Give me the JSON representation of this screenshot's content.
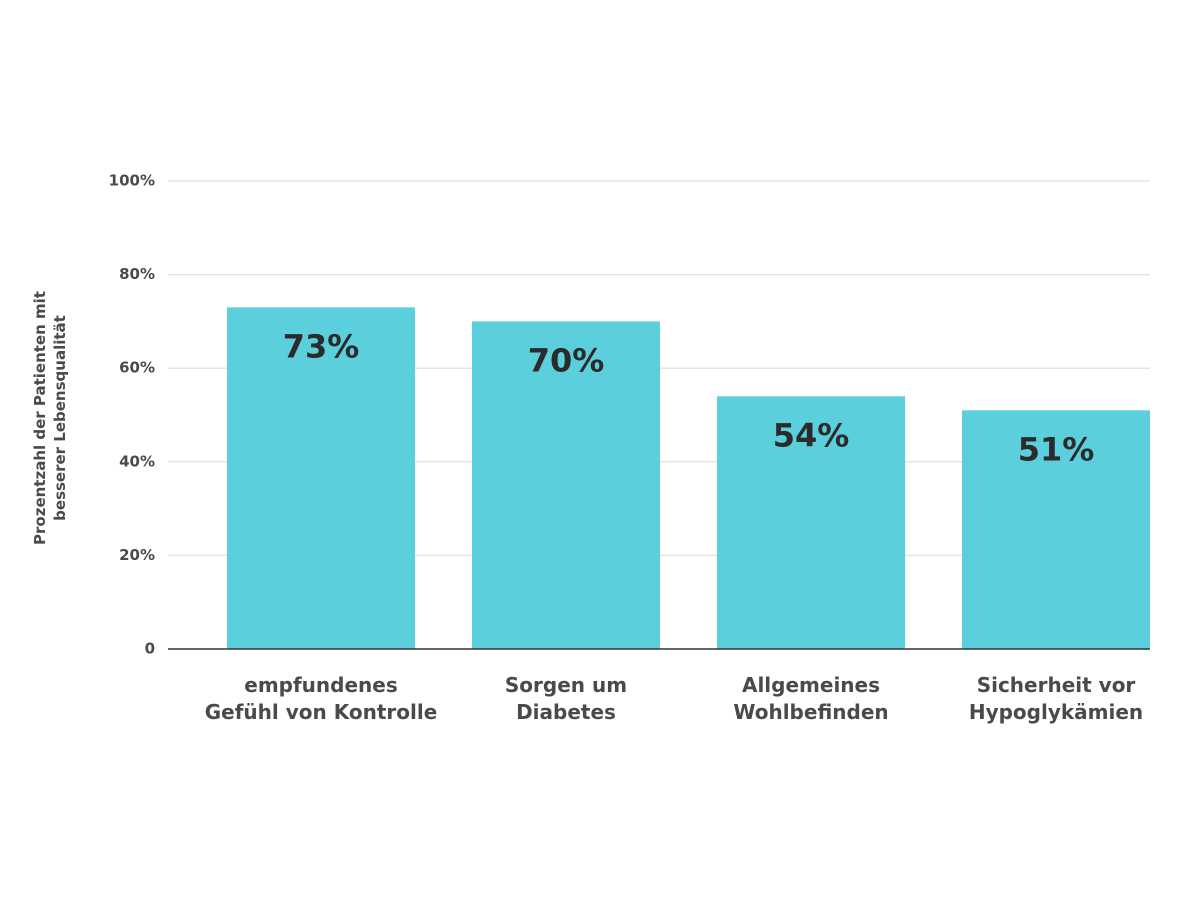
{
  "chart_data": {
    "type": "bar",
    "y_label": "Prozentzahl der Patienten mit\nbesserer Lebensqualität",
    "categories": [
      "empfundenes\nGefühl von Kontrolle",
      "Sorgen um\nDiabetes",
      "Allgemeines\nWohlbefinden",
      "Sicherheit vor\nHypoglykämien"
    ],
    "values": [
      73,
      70,
      54,
      51
    ],
    "value_labels": [
      "73%",
      "70%",
      "54%",
      "51%"
    ],
    "color": "#5bd0dc",
    "ylim": [
      0,
      100
    ],
    "yticks": [
      0,
      {
        "value": 20,
        "label": "20%"
      },
      {
        "value": 40,
        "label": "40%"
      },
      {
        "value": 60,
        "label": "60%"
      },
      {
        "value": 80,
        "label": "80%"
      },
      {
        "value": 100,
        "label": "100%"
      }
    ],
    "grid": true
  }
}
